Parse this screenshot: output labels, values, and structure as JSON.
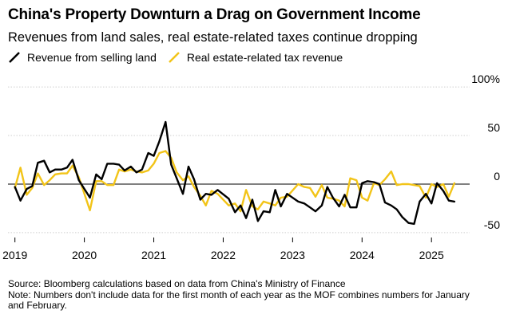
{
  "header": {
    "title": "China's Property Downturn a Drag on Government Income",
    "subtitle": "Revenues from land sales, real estate-related taxes continue dropping"
  },
  "legend": [
    {
      "label": "Revenue from selling land",
      "color": "#000000"
    },
    {
      "label": "Real estate-related tax revenue",
      "color": "#f2c418"
    }
  ],
  "footer": {
    "source": "Source: Bloomberg calculations based on data from China's Ministry of Finance",
    "note": "Note: Numbers don't include data for the first month of each year as the MOF combines numbers for January and February."
  },
  "chart_data": {
    "type": "line",
    "title": "China's Property Downturn a Drag on Government Income",
    "subtitle": "Revenues from land sales, real estate-related taxes continue dropping",
    "xlabel": "",
    "ylabel": "",
    "x_ticks": [
      "2019",
      "2020",
      "2021",
      "2022",
      "2023",
      "2024",
      "2025"
    ],
    "y_ticks": [
      {
        "value": 100,
        "label": "100%"
      },
      {
        "value": 50,
        "label": "50"
      },
      {
        "value": 0,
        "label": "0"
      },
      {
        "value": -50,
        "label": "-50"
      }
    ],
    "ylim": [
      -55,
      105
    ],
    "xlim": [
      2018.9,
      2025.55
    ],
    "zero_line": true,
    "grid": "horizontal",
    "legend_position": "top-left",
    "series": [
      {
        "name": "Revenue from selling land",
        "color": "#000000",
        "points": [
          [
            2019.0,
            -3
          ],
          [
            2019.08,
            -17
          ],
          [
            2019.17,
            -5
          ],
          [
            2019.25,
            -2
          ],
          [
            2019.33,
            22
          ],
          [
            2019.42,
            24
          ],
          [
            2019.5,
            12
          ],
          [
            2019.58,
            15
          ],
          [
            2019.67,
            15
          ],
          [
            2019.75,
            17
          ],
          [
            2019.83,
            25
          ],
          [
            2019.92,
            4
          ],
          [
            2020.08,
            -14
          ],
          [
            2020.17,
            10
          ],
          [
            2020.25,
            5
          ],
          [
            2020.33,
            21
          ],
          [
            2020.42,
            21
          ],
          [
            2020.5,
            20
          ],
          [
            2020.58,
            14
          ],
          [
            2020.67,
            18
          ],
          [
            2020.75,
            12
          ],
          [
            2020.83,
            15
          ],
          [
            2020.92,
            32
          ],
          [
            2021.0,
            29
          ],
          [
            2021.08,
            44
          ],
          [
            2021.17,
            64
          ],
          [
            2021.25,
            20
          ],
          [
            2021.33,
            6
          ],
          [
            2021.42,
            -10
          ],
          [
            2021.5,
            18
          ],
          [
            2021.58,
            5
          ],
          [
            2021.67,
            -16
          ],
          [
            2021.75,
            -10
          ],
          [
            2021.83,
            -11
          ],
          [
            2021.92,
            -6
          ],
          [
            2022.08,
            -15
          ],
          [
            2022.17,
            -29
          ],
          [
            2022.25,
            -22
          ],
          [
            2022.33,
            -35
          ],
          [
            2022.42,
            -16
          ],
          [
            2022.5,
            -38
          ],
          [
            2022.58,
            -28
          ],
          [
            2022.67,
            -29
          ],
          [
            2022.75,
            -6
          ],
          [
            2022.83,
            -23
          ],
          [
            2022.92,
            -10
          ],
          [
            2023.08,
            -18
          ],
          [
            2023.17,
            -20
          ],
          [
            2023.25,
            -24
          ],
          [
            2023.33,
            -28
          ],
          [
            2023.42,
            -22
          ],
          [
            2023.5,
            -3
          ],
          [
            2023.58,
            -14
          ],
          [
            2023.67,
            -23
          ],
          [
            2023.75,
            -11
          ],
          [
            2023.83,
            -24
          ],
          [
            2023.92,
            -24
          ],
          [
            2024.0,
            1
          ],
          [
            2024.08,
            3
          ],
          [
            2024.17,
            2
          ],
          [
            2024.25,
            0
          ],
          [
            2024.33,
            -19
          ],
          [
            2024.42,
            -22
          ],
          [
            2024.5,
            -26
          ],
          [
            2024.58,
            -34
          ],
          [
            2024.67,
            -40
          ],
          [
            2024.75,
            -41
          ],
          [
            2024.83,
            -18
          ],
          [
            2024.92,
            -10
          ],
          [
            2025.0,
            -20
          ],
          [
            2025.08,
            1
          ],
          [
            2025.17,
            -7
          ],
          [
            2025.25,
            -17
          ],
          [
            2025.33,
            -18
          ]
        ]
      },
      {
        "name": "Real estate-related tax revenue",
        "color": "#f2c418",
        "points": [
          [
            2019.0,
            -4
          ],
          [
            2019.08,
            17
          ],
          [
            2019.17,
            -11
          ],
          [
            2019.25,
            -4
          ],
          [
            2019.33,
            11
          ],
          [
            2019.42,
            -1
          ],
          [
            2019.5,
            4
          ],
          [
            2019.58,
            10
          ],
          [
            2019.67,
            11
          ],
          [
            2019.75,
            11
          ],
          [
            2019.83,
            19
          ],
          [
            2019.92,
            7
          ],
          [
            2020.08,
            -27
          ],
          [
            2020.17,
            3
          ],
          [
            2020.25,
            3
          ],
          [
            2020.33,
            -1
          ],
          [
            2020.42,
            -1
          ],
          [
            2020.5,
            15
          ],
          [
            2020.58,
            13
          ],
          [
            2020.67,
            15
          ],
          [
            2020.75,
            13
          ],
          [
            2020.83,
            12
          ],
          [
            2020.92,
            14
          ],
          [
            2021.0,
            21
          ],
          [
            2021.08,
            32
          ],
          [
            2021.17,
            34
          ],
          [
            2021.25,
            27
          ],
          [
            2021.33,
            12
          ],
          [
            2021.42,
            4
          ],
          [
            2021.5,
            8
          ],
          [
            2021.58,
            -3
          ],
          [
            2021.67,
            -12
          ],
          [
            2021.75,
            -22
          ],
          [
            2021.83,
            -7
          ],
          [
            2021.92,
            -10
          ],
          [
            2022.08,
            -22
          ],
          [
            2022.17,
            -20
          ],
          [
            2022.25,
            -28
          ],
          [
            2022.33,
            -6
          ],
          [
            2022.42,
            -23
          ],
          [
            2022.5,
            -26
          ],
          [
            2022.58,
            -18
          ],
          [
            2022.67,
            -20
          ],
          [
            2022.75,
            -22
          ],
          [
            2022.83,
            -14
          ],
          [
            2022.92,
            -13
          ],
          [
            2023.08,
            0
          ],
          [
            2023.17,
            -3
          ],
          [
            2023.25,
            -4
          ],
          [
            2023.33,
            -13
          ],
          [
            2023.42,
            -1
          ],
          [
            2023.5,
            -14
          ],
          [
            2023.58,
            -15
          ],
          [
            2023.67,
            -17
          ],
          [
            2023.75,
            -23
          ],
          [
            2023.83,
            6
          ],
          [
            2023.92,
            4
          ],
          [
            2024.0,
            -14
          ],
          [
            2024.08,
            -17
          ],
          [
            2024.17,
            1
          ],
          [
            2024.25,
            -1
          ],
          [
            2024.33,
            5
          ],
          [
            2024.42,
            13
          ],
          [
            2024.5,
            -1
          ],
          [
            2024.58,
            0
          ],
          [
            2024.67,
            0
          ],
          [
            2024.75,
            -1
          ],
          [
            2024.83,
            -2
          ],
          [
            2024.92,
            -14
          ],
          [
            2025.0,
            0
          ],
          [
            2025.08,
            -3
          ],
          [
            2025.17,
            0
          ],
          [
            2025.25,
            -13
          ],
          [
            2025.33,
            1
          ]
        ]
      }
    ]
  }
}
